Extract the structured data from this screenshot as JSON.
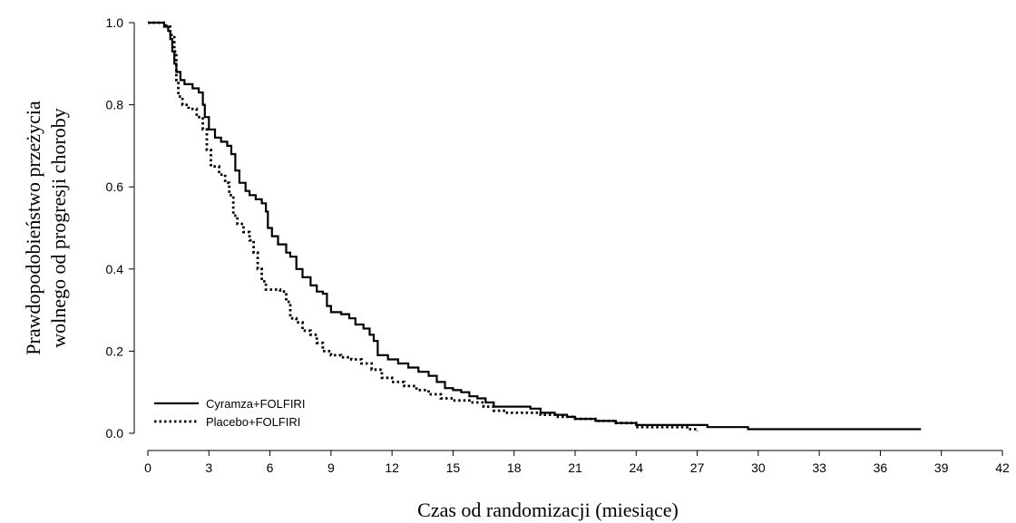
{
  "chart_data": {
    "type": "line",
    "title": "",
    "xlabel": "Czas od randomizacji (miesiące)",
    "ylabel_lines": [
      "Prawdopodobieństwo przeżycia",
      "wolnego od progresji choroby"
    ],
    "xlim": [
      0,
      42
    ],
    "ylim": [
      0,
      1.0
    ],
    "x_ticks": [
      0,
      3,
      6,
      9,
      12,
      15,
      18,
      21,
      24,
      27,
      30,
      33,
      36,
      39,
      42
    ],
    "x_tick_labels": [
      "0",
      "3",
      "6",
      "9",
      "12",
      "15",
      "18",
      "21",
      "24",
      "27",
      "30",
      "33",
      "36",
      "39",
      "42"
    ],
    "y_ticks": [
      0.0,
      0.2,
      0.4,
      0.6,
      0.8,
      1.0
    ],
    "y_tick_labels": [
      "0.0",
      "0.2",
      "0.4",
      "0.6",
      "0.8",
      "1.0"
    ],
    "grid": false,
    "legend_position": "bottom-left",
    "series": [
      {
        "name": "Cyramza+FOLFIRI",
        "style": "solid",
        "color": "#000000",
        "points": [
          [
            0,
            1.0
          ],
          [
            0.5,
            1.0
          ],
          [
            0.8,
            0.99
          ],
          [
            1.0,
            0.98
          ],
          [
            1.1,
            0.96
          ],
          [
            1.2,
            0.93
          ],
          [
            1.3,
            0.9
          ],
          [
            1.4,
            0.88
          ],
          [
            1.6,
            0.86
          ],
          [
            1.8,
            0.85
          ],
          [
            2.2,
            0.84
          ],
          [
            2.5,
            0.83
          ],
          [
            2.7,
            0.8
          ],
          [
            2.8,
            0.77
          ],
          [
            3.0,
            0.74
          ],
          [
            3.3,
            0.72
          ],
          [
            3.6,
            0.71
          ],
          [
            3.9,
            0.7
          ],
          [
            4.1,
            0.68
          ],
          [
            4.3,
            0.64
          ],
          [
            4.5,
            0.61
          ],
          [
            4.8,
            0.59
          ],
          [
            5.0,
            0.58
          ],
          [
            5.3,
            0.57
          ],
          [
            5.6,
            0.56
          ],
          [
            5.8,
            0.54
          ],
          [
            5.9,
            0.5
          ],
          [
            6.1,
            0.48
          ],
          [
            6.4,
            0.46
          ],
          [
            6.8,
            0.44
          ],
          [
            7.0,
            0.43
          ],
          [
            7.3,
            0.4
          ],
          [
            7.6,
            0.38
          ],
          [
            8.0,
            0.36
          ],
          [
            8.3,
            0.345
          ],
          [
            8.6,
            0.34
          ],
          [
            8.8,
            0.31
          ],
          [
            9.0,
            0.295
          ],
          [
            9.5,
            0.29
          ],
          [
            9.9,
            0.28
          ],
          [
            10.2,
            0.265
          ],
          [
            10.6,
            0.255
          ],
          [
            10.9,
            0.24
          ],
          [
            11.1,
            0.225
          ],
          [
            11.3,
            0.19
          ],
          [
            11.8,
            0.18
          ],
          [
            12.3,
            0.17
          ],
          [
            12.8,
            0.16
          ],
          [
            13.3,
            0.15
          ],
          [
            13.8,
            0.14
          ],
          [
            14.2,
            0.125
          ],
          [
            14.6,
            0.11
          ],
          [
            15.0,
            0.105
          ],
          [
            15.4,
            0.1
          ],
          [
            15.8,
            0.09
          ],
          [
            16.2,
            0.085
          ],
          [
            16.6,
            0.075
          ],
          [
            17.0,
            0.065
          ],
          [
            18.0,
            0.065
          ],
          [
            18.8,
            0.06
          ],
          [
            19.3,
            0.05
          ],
          [
            20.0,
            0.045
          ],
          [
            20.6,
            0.04
          ],
          [
            21.0,
            0.035
          ],
          [
            22.0,
            0.03
          ],
          [
            23.0,
            0.025
          ],
          [
            24.0,
            0.02
          ],
          [
            26.0,
            0.02
          ],
          [
            27.5,
            0.015
          ],
          [
            29.5,
            0.01
          ],
          [
            33.0,
            0.01
          ],
          [
            38.0,
            0.01
          ]
        ]
      },
      {
        "name": "Placebo+FOLFIRI",
        "style": "dotted",
        "color": "#000000",
        "points": [
          [
            0,
            1.0
          ],
          [
            0.6,
            1.0
          ],
          [
            0.9,
            0.99
          ],
          [
            1.1,
            0.97
          ],
          [
            1.3,
            0.93
          ],
          [
            1.4,
            0.86
          ],
          [
            1.5,
            0.82
          ],
          [
            1.7,
            0.8
          ],
          [
            2.0,
            0.79
          ],
          [
            2.4,
            0.77
          ],
          [
            2.7,
            0.74
          ],
          [
            2.9,
            0.69
          ],
          [
            3.1,
            0.65
          ],
          [
            3.5,
            0.63
          ],
          [
            3.8,
            0.61
          ],
          [
            4.0,
            0.58
          ],
          [
            4.2,
            0.53
          ],
          [
            4.4,
            0.51
          ],
          [
            4.7,
            0.49
          ],
          [
            5.0,
            0.47
          ],
          [
            5.2,
            0.44
          ],
          [
            5.4,
            0.4
          ],
          [
            5.6,
            0.37
          ],
          [
            5.8,
            0.35
          ],
          [
            6.5,
            0.345
          ],
          [
            6.8,
            0.32
          ],
          [
            7.0,
            0.28
          ],
          [
            7.3,
            0.27
          ],
          [
            7.6,
            0.25
          ],
          [
            8.0,
            0.24
          ],
          [
            8.3,
            0.22
          ],
          [
            8.6,
            0.2
          ],
          [
            9.0,
            0.19
          ],
          [
            9.5,
            0.185
          ],
          [
            10.0,
            0.18
          ],
          [
            10.5,
            0.17
          ],
          [
            11.0,
            0.155
          ],
          [
            11.5,
            0.135
          ],
          [
            12.0,
            0.125
          ],
          [
            12.6,
            0.115
          ],
          [
            13.2,
            0.105
          ],
          [
            13.8,
            0.095
          ],
          [
            14.4,
            0.085
          ],
          [
            15.0,
            0.08
          ],
          [
            15.8,
            0.075
          ],
          [
            16.5,
            0.065
          ],
          [
            17.0,
            0.055
          ],
          [
            17.5,
            0.05
          ],
          [
            18.5,
            0.05
          ],
          [
            19.3,
            0.045
          ],
          [
            20.0,
            0.04
          ],
          [
            21.0,
            0.035
          ],
          [
            22.0,
            0.03
          ],
          [
            23.0,
            0.025
          ],
          [
            24.0,
            0.015
          ],
          [
            25.5,
            0.015
          ],
          [
            26.5,
            0.01
          ],
          [
            27.0,
            0.005
          ]
        ]
      }
    ]
  }
}
